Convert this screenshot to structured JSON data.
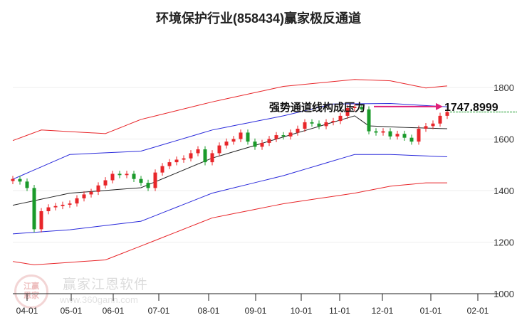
{
  "chart_data": {
    "type": "candlestick",
    "title": "环境保护行业(858434)赢家极反通道",
    "ylim": [
      1000,
      1900
    ],
    "yticks": [
      1000,
      1200,
      1400,
      1600,
      1800
    ],
    "xticks": [
      {
        "label": "04-01",
        "index": 2
      },
      {
        "label": "05-01",
        "index": 8.2
      },
      {
        "label": "06-01",
        "index": 14.1
      },
      {
        "label": "07-01",
        "index": 20.5
      },
      {
        "label": "08-01",
        "index": 27.5
      },
      {
        "label": "09-01",
        "index": 34.1
      },
      {
        "label": "10-01",
        "index": 40.5
      },
      {
        "label": "11-01",
        "index": 45.9
      },
      {
        "label": "12-01",
        "index": 51.9
      },
      {
        "label": "01-01",
        "index": 58.7
      },
      {
        "label": "02-01",
        "index": 65.3
      }
    ],
    "closes": [
      1445,
      1435,
      1410,
      1250,
      1320,
      1335,
      1340,
      1345,
      1350,
      1370,
      1385,
      1395,
      1420,
      1440,
      1465,
      1460,
      1465,
      1445,
      1430,
      1410,
      1470,
      1495,
      1510,
      1520,
      1525,
      1545,
      1560,
      1510,
      1545,
      1575,
      1590,
      1600,
      1625,
      1590,
      1570,
      1585,
      1600,
      1615,
      1610,
      1625,
      1640,
      1665,
      1660,
      1650,
      1665,
      1670,
      1690,
      1720,
      1725,
      1715,
      1630,
      1625,
      1630,
      1610,
      1620,
      1605,
      1590,
      1640,
      1650,
      1660,
      1690,
      1705
    ],
    "bands": [
      {
        "name": "upper-red",
        "color": "#e8262a",
        "knots": [
          [
            0,
            1594
          ],
          [
            4,
            1635
          ],
          [
            13,
            1621
          ],
          [
            18,
            1676
          ],
          [
            28,
            1744
          ],
          [
            38,
            1804
          ],
          [
            48,
            1831
          ],
          [
            53,
            1826
          ],
          [
            58,
            1798
          ],
          [
            61,
            1806
          ]
        ]
      },
      {
        "name": "upper-blue",
        "color": "#2b2bdb",
        "knots": [
          [
            0,
            1444
          ],
          [
            8,
            1540
          ],
          [
            18,
            1553
          ],
          [
            28,
            1635
          ],
          [
            38,
            1690
          ],
          [
            45,
            1736
          ],
          [
            53,
            1738
          ],
          [
            61,
            1725
          ]
        ]
      },
      {
        "name": "middle-black",
        "color": "#222222",
        "knots": [
          [
            0,
            1343
          ],
          [
            8,
            1390
          ],
          [
            18,
            1411
          ],
          [
            28,
            1526
          ],
          [
            38,
            1608
          ],
          [
            48,
            1690
          ],
          [
            50,
            1651
          ],
          [
            55,
            1645
          ],
          [
            61,
            1640
          ]
        ]
      },
      {
        "name": "lower-blue",
        "color": "#2b2bdb",
        "knots": [
          [
            0,
            1232
          ],
          [
            8,
            1248
          ],
          [
            18,
            1281
          ],
          [
            28,
            1390
          ],
          [
            38,
            1458
          ],
          [
            48,
            1540
          ],
          [
            53,
            1540
          ],
          [
            61,
            1531
          ]
        ]
      },
      {
        "name": "lower-red",
        "color": "#e8262a",
        "knots": [
          [
            0,
            1125
          ],
          [
            3,
            1112
          ],
          [
            13,
            1131
          ],
          [
            18,
            1185
          ],
          [
            28,
            1294
          ],
          [
            38,
            1349
          ],
          [
            48,
            1390
          ],
          [
            53,
            1417
          ],
          [
            58,
            1430
          ],
          [
            61,
            1430
          ]
        ]
      }
    ],
    "annotation": {
      "text": "强势通道线构成压力",
      "value_label": "1747.8999",
      "value": 1747.8999
    },
    "colors": {
      "up": "#e8262a",
      "down": "#1a9a2a",
      "arrow": "#e0207a"
    }
  },
  "watermark": {
    "name": "赢家江恩软件",
    "url": "www.360gann.com",
    "seal": "江赢恩家"
  }
}
